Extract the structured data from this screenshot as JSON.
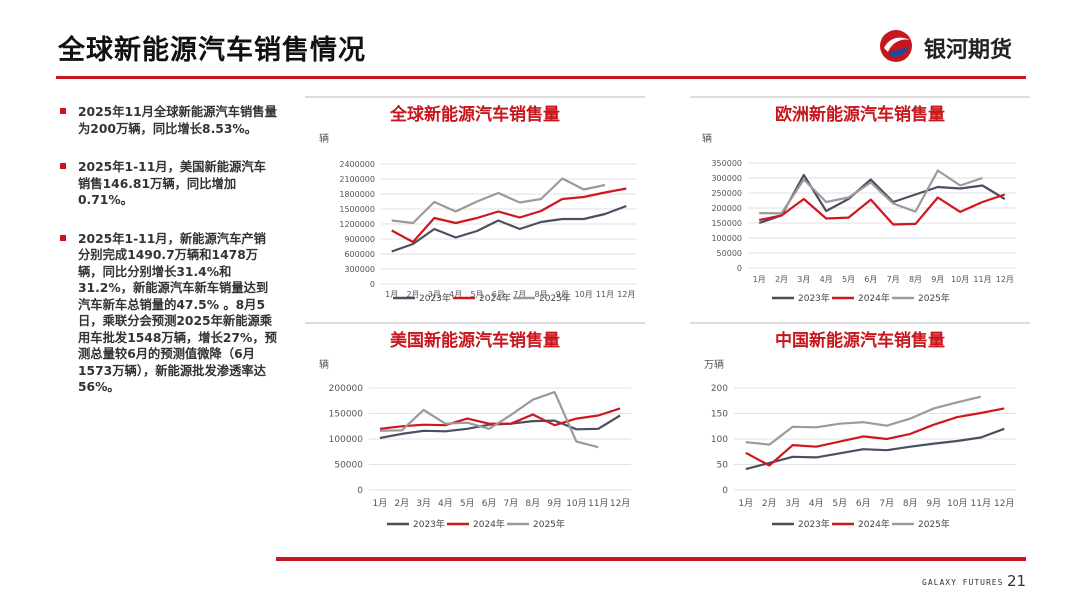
{
  "page": {
    "title": "全球新能源汽车销售情况",
    "logo_text": "银河期货",
    "footer_brand": "GALAXY FUTURES",
    "page_number": "21"
  },
  "bullets": [
    "2025年11月全球新能源汽车销售量为200万辆，同比增长8.53%。",
    "2025年1-11月，美国新能源汽车销售146.81万辆，同比增加0.71%。",
    "2025年1-11月，新能源汽车产销分别完成1490.7万辆和1478万辆，同比分别增长31.4%和31.2%，新能源汽车新车销量达到汽车新车总销量的47.5% 。8月5日，乘联分会预测2025年新能源乘用车批发1548万辆，增长27%，预测总量较6月的预测值微降（6月1573万辆），新能源批发渗透率达56%。"
  ],
  "colors": {
    "accent": "#c8161d",
    "s2023": "#4a5060",
    "s2024": "#d0161e",
    "s2025": "#9a9a9a"
  },
  "chart_data": [
    {
      "type": "line",
      "title": "全球新能源汽车销售量",
      "ylabel": "辆",
      "categories": [
        "1月",
        "2月",
        "3月",
        "4月",
        "5月",
        "6月",
        "7月",
        "8月",
        "9月",
        "10月",
        "11月",
        "12月"
      ],
      "ylim": [
        0,
        2400000
      ],
      "yticks": [
        0,
        300000,
        600000,
        900000,
        1200000,
        1500000,
        1800000,
        2100000,
        2400000
      ],
      "series": [
        {
          "name": "2023年",
          "values": [
            650000,
            800000,
            1100000,
            930000,
            1060000,
            1270000,
            1100000,
            1240000,
            1300000,
            1300000,
            1400000,
            1560000
          ]
        },
        {
          "name": "2024年",
          "values": [
            1070000,
            840000,
            1320000,
            1220000,
            1320000,
            1450000,
            1330000,
            1460000,
            1700000,
            1740000,
            1830000,
            1910000
          ]
        },
        {
          "name": "2025年",
          "values": [
            1270000,
            1220000,
            1640000,
            1450000,
            1650000,
            1820000,
            1630000,
            1700000,
            2110000,
            1890000,
            1980000,
            null
          ]
        }
      ]
    },
    {
      "type": "line",
      "title": "欧洲新能源汽车销售量",
      "ylabel": "辆",
      "categories": [
        "1月",
        "2月",
        "3月",
        "4月",
        "5月",
        "6月",
        "7月",
        "8月",
        "9月",
        "10月",
        "11月",
        "12月"
      ],
      "ylim": [
        0,
        350000
      ],
      "yticks": [
        0,
        50000,
        100000,
        150000,
        200000,
        250000,
        300000,
        350000
      ],
      "series": [
        {
          "name": "2023年",
          "values": [
            150000,
            175000,
            310000,
            190000,
            230000,
            295000,
            220000,
            245000,
            270000,
            265000,
            275000,
            230000
          ]
        },
        {
          "name": "2024年",
          "values": [
            160000,
            175000,
            230000,
            165000,
            168000,
            228000,
            145000,
            147000,
            235000,
            187000,
            220000,
            245000
          ]
        },
        {
          "name": "2025年",
          "values": [
            183000,
            182000,
            295000,
            220000,
            235000,
            285000,
            215000,
            188000,
            325000,
            275000,
            300000,
            null
          ]
        }
      ]
    },
    {
      "type": "line",
      "title": "美国新能源汽车销售量",
      "ylabel": "辆",
      "categories": [
        "1月",
        "2月",
        "3月",
        "4月",
        "5月",
        "6月",
        "7月",
        "8月",
        "9月",
        "10月",
        "11月",
        "12月"
      ],
      "ylim": [
        0,
        200000
      ],
      "yticks": [
        0,
        50000,
        100000,
        150000,
        200000
      ],
      "series": [
        {
          "name": "2023年",
          "values": [
            102000,
            110000,
            116000,
            115000,
            120000,
            128000,
            130000,
            135000,
            136000,
            119000,
            120000,
            146000
          ]
        },
        {
          "name": "2024年",
          "values": [
            120000,
            125000,
            128000,
            127000,
            140000,
            130000,
            130000,
            148000,
            127000,
            140000,
            146000,
            160000
          ]
        },
        {
          "name": "2025年",
          "values": [
            116000,
            117000,
            157000,
            130000,
            132000,
            120000,
            147000,
            177000,
            192000,
            95000,
            84000,
            null
          ]
        }
      ]
    },
    {
      "type": "line",
      "title": "中国新能源汽车销售量",
      "ylabel": "万辆",
      "categories": [
        "1月",
        "2月",
        "3月",
        "4月",
        "5月",
        "6月",
        "7月",
        "8月",
        "9月",
        "10月",
        "11月",
        "12月"
      ],
      "ylim": [
        0,
        200
      ],
      "yticks": [
        0,
        50,
        100,
        150,
        200
      ],
      "series": [
        {
          "name": "2023年",
          "values": [
            41,
            53,
            65,
            64,
            72,
            80,
            78,
            85,
            91,
            96,
            103,
            120
          ]
        },
        {
          "name": "2024年",
          "values": [
            73,
            48,
            88,
            85,
            95,
            105,
            100,
            110,
            128,
            143,
            151,
            160
          ]
        },
        {
          "name": "2025年",
          "values": [
            94,
            89,
            124,
            123,
            130,
            133,
            126,
            140,
            160,
            172,
            183,
            null
          ]
        }
      ]
    }
  ]
}
